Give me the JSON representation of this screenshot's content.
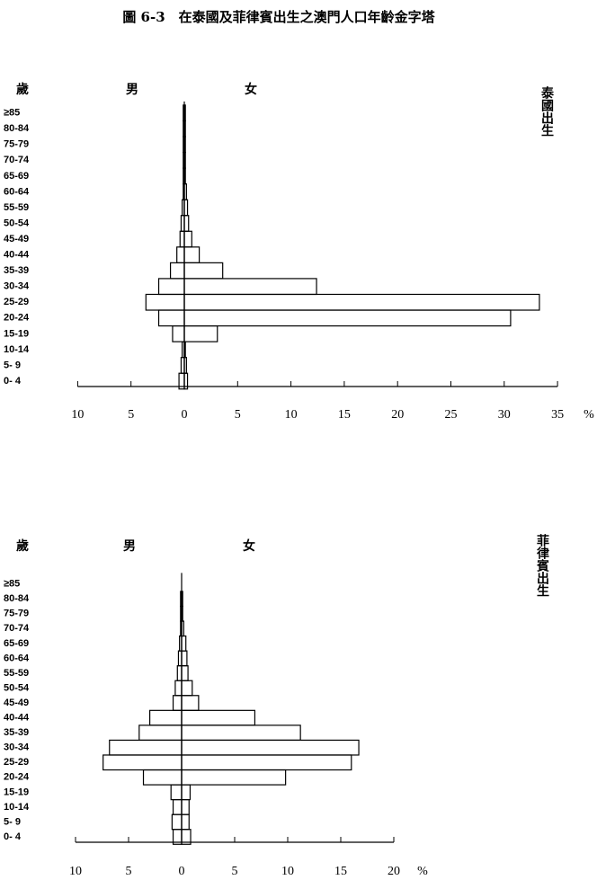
{
  "title": "圖 6-3　在泰國及菲律賓出生之澳門人口年齡金字塔",
  "chart_data": [
    {
      "type": "pyramid",
      "y_label": "歲",
      "side_label": "泰國出生",
      "x_label": "%",
      "categories": [
        "0- 4",
        "5- 9",
        "10-14",
        "15-19",
        "20-24",
        "25-29",
        "30-34",
        "35-39",
        "40-44",
        "45-49",
        "50-54",
        "55-59",
        "60-64",
        "65-69",
        "70-74",
        "75-79",
        "80-84",
        "≥85"
      ],
      "series": [
        {
          "name": "男",
          "color": "#000000",
          "values": [
            0.5,
            0.3,
            0.2,
            1.1,
            2.4,
            3.6,
            2.4,
            1.3,
            0.7,
            0.4,
            0.3,
            0.2,
            0.1,
            0.1,
            0.1,
            0.1,
            0.1,
            0.1
          ]
        },
        {
          "name": "女",
          "color": "#000000",
          "values": [
            0.3,
            0.2,
            0.1,
            3.1,
            30.6,
            33.3,
            12.4,
            3.6,
            1.4,
            0.7,
            0.4,
            0.3,
            0.2,
            0.1,
            0.1,
            0.1,
            0.1,
            0.1
          ]
        }
      ],
      "xlim": [
        -10,
        35
      ],
      "xticks": [
        {
          "value": -10,
          "label": "10"
        },
        {
          "value": -5,
          "label": "5"
        },
        0,
        5,
        10,
        15,
        20,
        25,
        30,
        35
      ]
    },
    {
      "type": "pyramid",
      "y_label": "歲",
      "side_label": "菲律賓出生",
      "x_label": "%",
      "categories": [
        "0- 4",
        "5- 9",
        "10-14",
        "15-19",
        "20-24",
        "25-29",
        "30-34",
        "35-39",
        "40-44",
        "45-49",
        "50-54",
        "55-59",
        "60-64",
        "65-69",
        "70-74",
        "75-79",
        "80-84",
        "≥85"
      ],
      "series": [
        {
          "name": "男",
          "color": "#000000",
          "values": [
            0.8,
            0.9,
            0.8,
            1.0,
            3.6,
            7.4,
            6.8,
            4.0,
            3.0,
            0.8,
            0.6,
            0.4,
            0.3,
            0.2,
            0.1,
            0.1,
            0.1,
            0
          ]
        },
        {
          "name": "女",
          "color": "#000000",
          "values": [
            0.85,
            0.7,
            0.7,
            0.8,
            9.8,
            16.0,
            16.7,
            11.2,
            6.9,
            1.6,
            1.0,
            0.6,
            0.5,
            0.4,
            0.2,
            0.1,
            0.1,
            0
          ]
        }
      ],
      "xlim": [
        -10,
        20
      ],
      "xticks": [
        {
          "value": -10,
          "label": "10"
        },
        {
          "value": -5,
          "label": "5"
        },
        0,
        5,
        10,
        15,
        20
      ]
    }
  ]
}
